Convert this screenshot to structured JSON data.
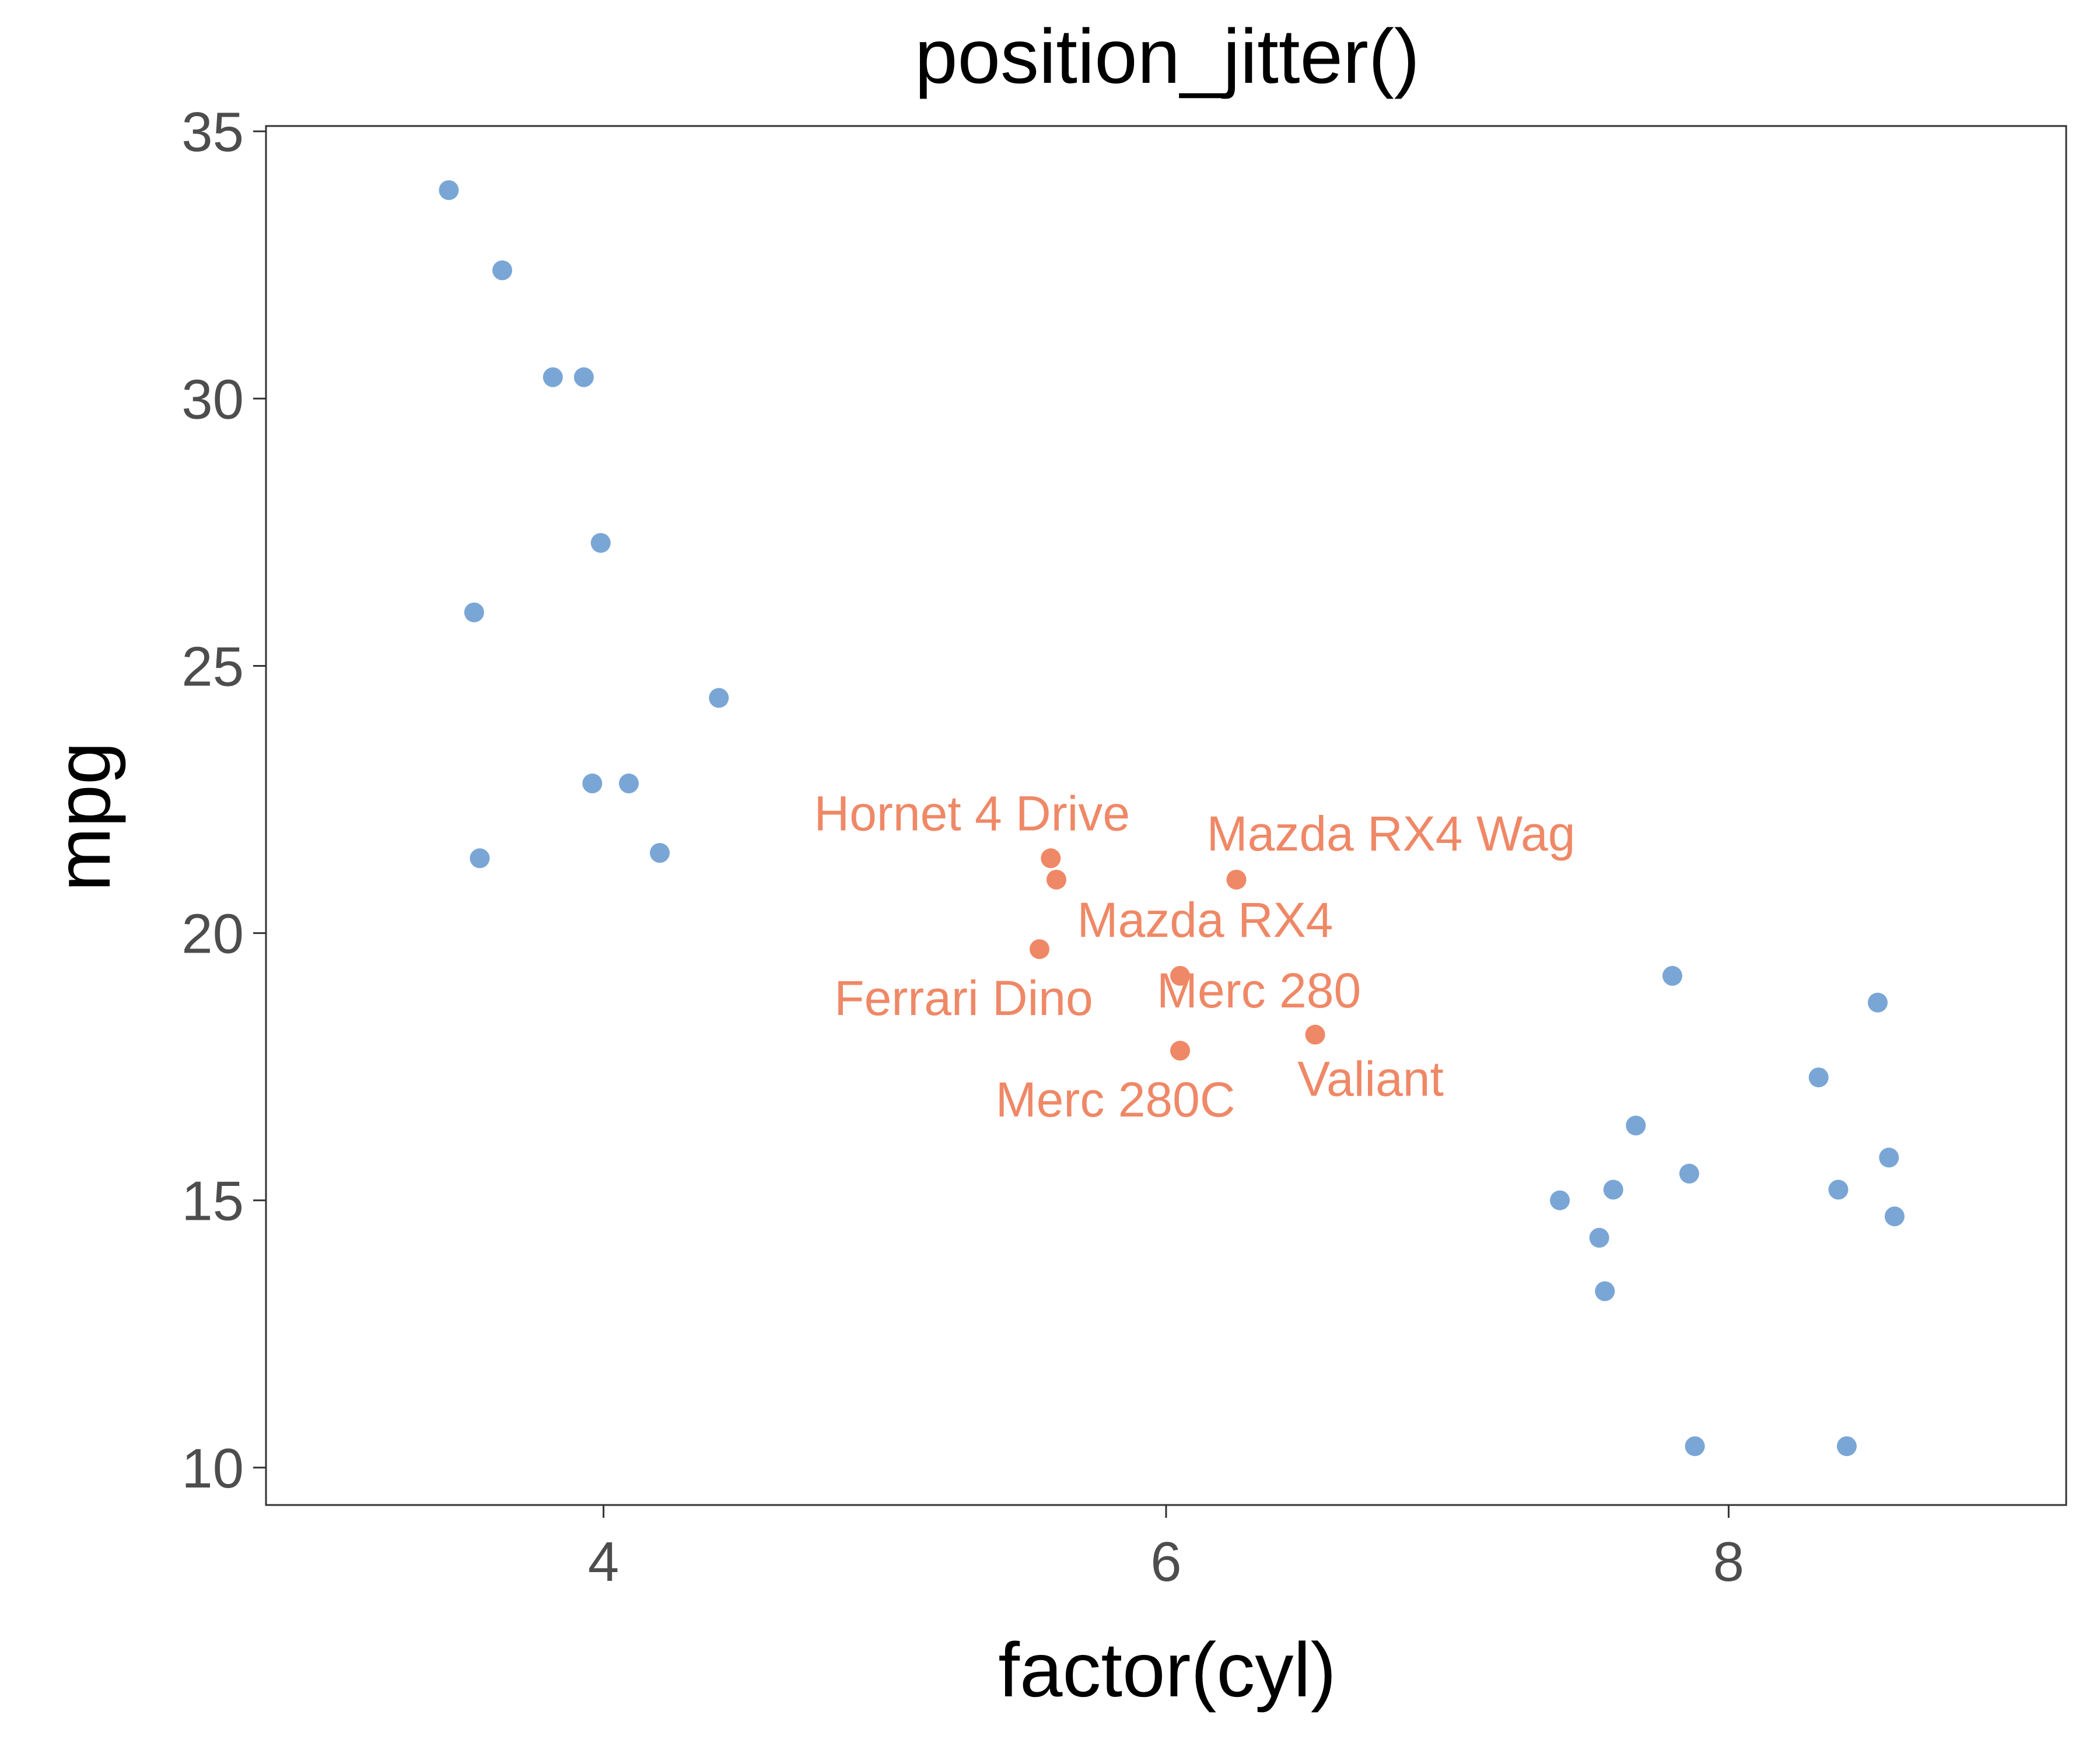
{
  "chart_data": {
    "type": "scatter",
    "title": "position_jitter()",
    "xlabel": "factor(cyl)",
    "ylabel": "mpg",
    "xlim": [
      2.8,
      9.2
    ],
    "ylim": [
      9.3,
      35.1
    ],
    "xticks": [
      4,
      6,
      8
    ],
    "yticks": [
      10,
      15,
      20,
      25,
      30,
      35
    ],
    "grid": false,
    "colors": {
      "default": "#7aa6d6",
      "highlight": "#ef8866"
    },
    "series": [
      {
        "color": "#7aa6d6",
        "points": [
          {
            "x": 3.45,
            "y": 33.9
          },
          {
            "x": 3.64,
            "y": 32.4
          },
          {
            "x": 3.82,
            "y": 30.4
          },
          {
            "x": 3.93,
            "y": 30.4
          },
          {
            "x": 3.99,
            "y": 27.3
          },
          {
            "x": 3.54,
            "y": 26.0
          },
          {
            "x": 4.41,
            "y": 24.4
          },
          {
            "x": 3.96,
            "y": 22.8
          },
          {
            "x": 4.09,
            "y": 22.8
          },
          {
            "x": 4.2,
            "y": 21.5
          },
          {
            "x": 3.56,
            "y": 21.4
          },
          {
            "x": 7.8,
            "y": 19.2
          },
          {
            "x": 8.53,
            "y": 18.7
          },
          {
            "x": 8.32,
            "y": 17.3
          },
          {
            "x": 7.67,
            "y": 16.4
          },
          {
            "x": 8.57,
            "y": 15.8
          },
          {
            "x": 7.86,
            "y": 15.5
          },
          {
            "x": 7.59,
            "y": 15.2
          },
          {
            "x": 8.39,
            "y": 15.2
          },
          {
            "x": 7.4,
            "y": 15.0
          },
          {
            "x": 8.59,
            "y": 14.7
          },
          {
            "x": 7.54,
            "y": 14.3
          },
          {
            "x": 7.56,
            "y": 13.3
          },
          {
            "x": 7.88,
            "y": 10.4
          },
          {
            "x": 8.42,
            "y": 10.4
          }
        ]
      },
      {
        "color": "#ef8866",
        "points": [
          {
            "x": 5.59,
            "y": 21.4,
            "label": "Hornet 4 Drive"
          },
          {
            "x": 6.25,
            "y": 21.0,
            "label": "Mazda RX4 Wag"
          },
          {
            "x": 5.61,
            "y": 21.0,
            "label": "Mazda RX4"
          },
          {
            "x": 5.55,
            "y": 19.7,
            "label": "Ferrari Dino"
          },
          {
            "x": 6.05,
            "y": 19.2,
            "label": "Merc 280"
          },
          {
            "x": 6.53,
            "y": 18.1,
            "label": "Valiant"
          },
          {
            "x": 6.05,
            "y": 17.8,
            "label": "Merc 280C"
          }
        ]
      }
    ]
  }
}
